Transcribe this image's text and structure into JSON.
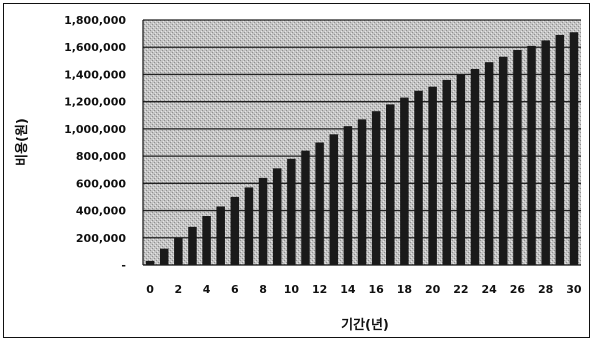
{
  "chart_data": {
    "type": "bar",
    "xlabel": "기간(년)",
    "ylabel": "비용(원)",
    "ylim": [
      0,
      1800000
    ],
    "y_ticks": [
      "-",
      "200,000",
      "400,000",
      "600,000",
      "800,000",
      "1,000,000",
      "1,200,000",
      "1,400,000",
      "1,600,000",
      "1,800,000"
    ],
    "x_ticks": [
      "0",
      "2",
      "4",
      "6",
      "8",
      "10",
      "12",
      "14",
      "16",
      "18",
      "20",
      "22",
      "24",
      "26",
      "28",
      "30"
    ],
    "grid": "horizontal",
    "colors": {
      "bar": "#1a1a1a",
      "plot_bg": "#bdbdbd",
      "grid": "#222222"
    },
    "categories": [
      0,
      1,
      2,
      3,
      4,
      5,
      6,
      7,
      8,
      9,
      10,
      11,
      12,
      13,
      14,
      15,
      16,
      17,
      18,
      19,
      20,
      21,
      22,
      23,
      24,
      25,
      26,
      27,
      28,
      29,
      30
    ],
    "values": [
      30000,
      120000,
      200000,
      280000,
      360000,
      430000,
      500000,
      570000,
      640000,
      710000,
      780000,
      840000,
      900000,
      960000,
      1020000,
      1070000,
      1130000,
      1180000,
      1230000,
      1280000,
      1310000,
      1360000,
      1400000,
      1440000,
      1490000,
      1530000,
      1580000,
      1610000,
      1650000,
      1690000,
      1710000
    ]
  }
}
